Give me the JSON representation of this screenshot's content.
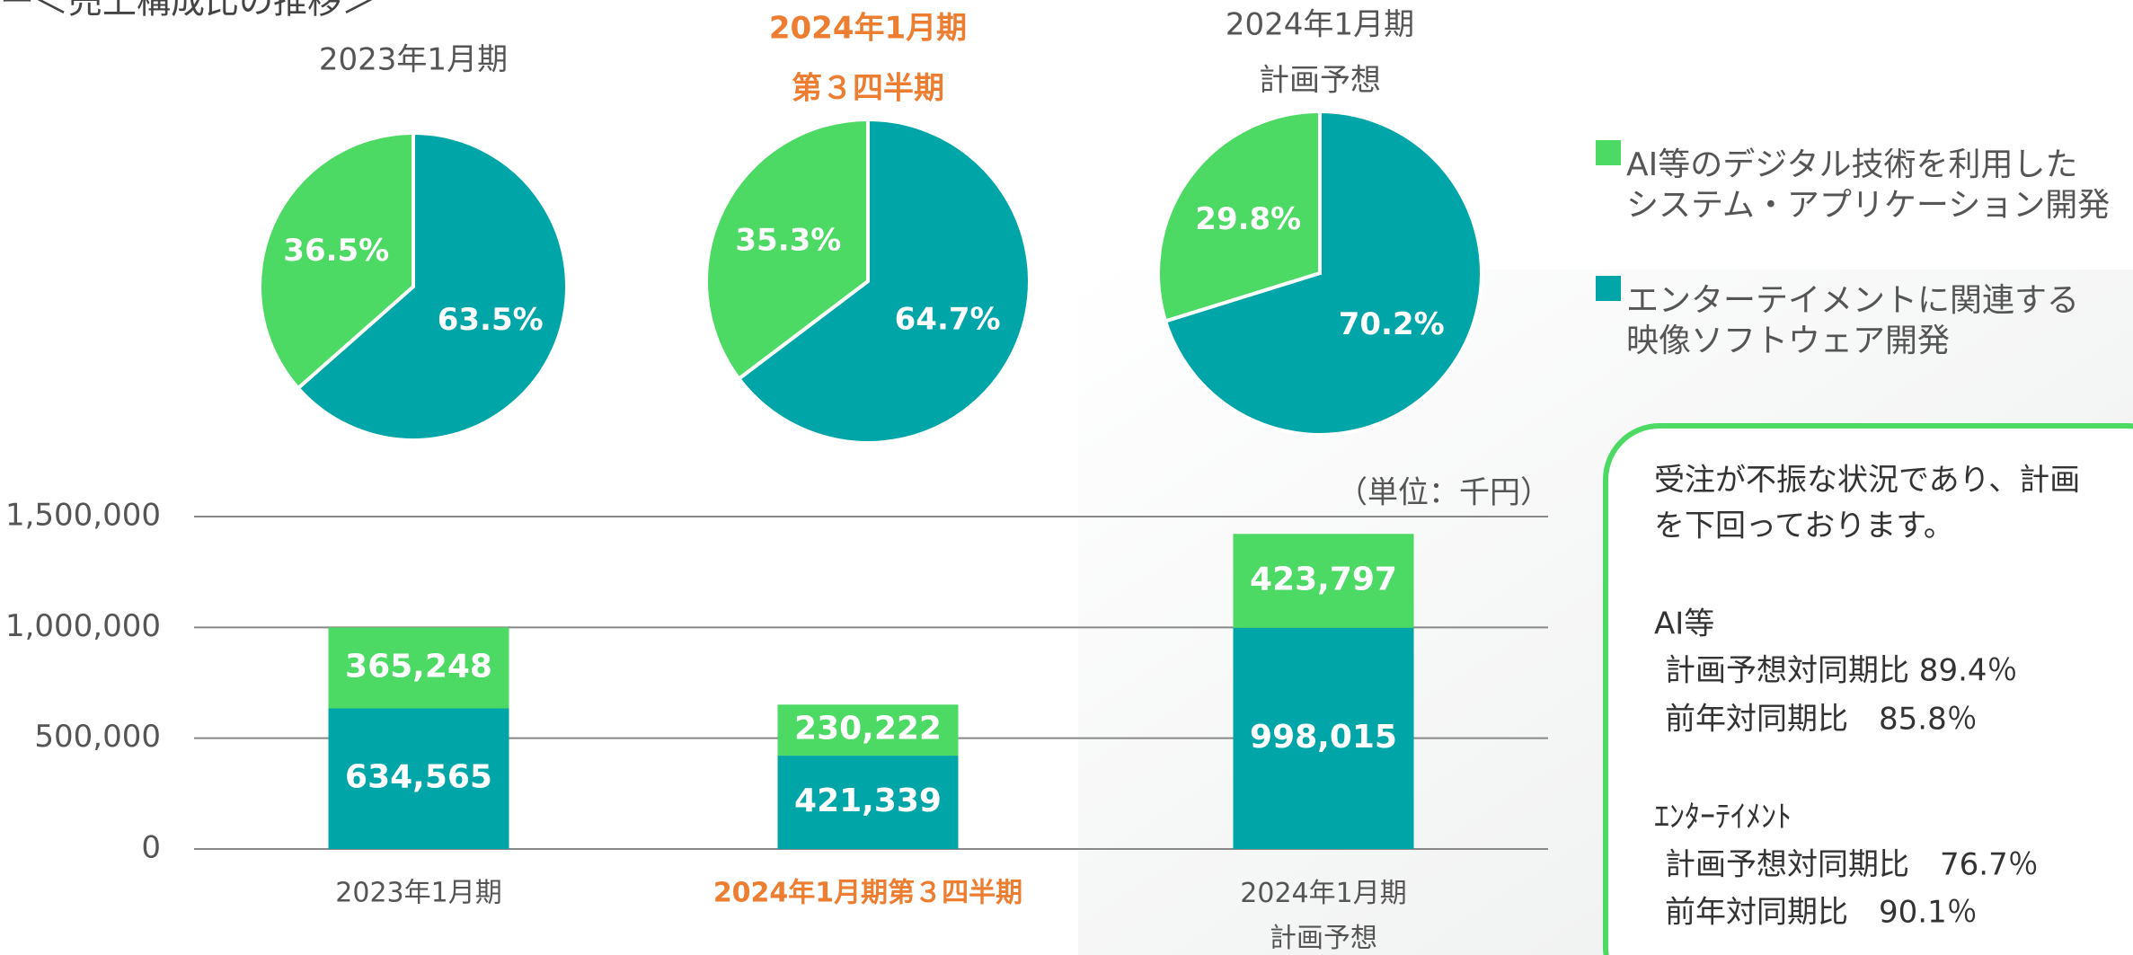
{
  "heading": "ー＜売上構成比の推移＞",
  "note": {
    "lines": [
      "受注が不振な状況であり、計画",
      "を下回っております。",
      "AI等",
      "計画予想対同期比 89.4％",
      "前年対同期比　85.8％",
      "ｴﾝﾀｰﾃｲﾒﾝﾄ",
      "計画予想対同期比　76.7％",
      "前年対同期比　90.1％"
    ],
    "border_color": "#4cd964"
  },
  "chart_data": [
    {
      "type": "pie",
      "title": [
        "2023年1月期"
      ],
      "title_color": "#555555",
      "title_bold": false,
      "values": [
        63.5,
        36.5
      ],
      "value_labels": [
        "63.5%",
        "36.5%"
      ],
      "colors": [
        "#00a5a8",
        "#4cd964"
      ]
    },
    {
      "type": "pie",
      "title": [
        "2024年1月期",
        "第３四半期"
      ],
      "title_color": "#ed7d31",
      "title_bold": true,
      "values": [
        64.7,
        35.3
      ],
      "value_labels": [
        "64.7%",
        "35.3%"
      ],
      "colors": [
        "#00a5a8",
        "#4cd964"
      ]
    },
    {
      "type": "pie",
      "title": [
        "2024年1月期",
        "計画予想"
      ],
      "title_color": "#555555",
      "title_bold": false,
      "values": [
        70.2,
        29.8
      ],
      "value_labels": [
        "70.2%",
        "29.8%"
      ],
      "colors": [
        "#00a5a8",
        "#4cd964"
      ]
    },
    {
      "type": "stacked_bar",
      "unit_label": "（単位：千円）",
      "categories": [
        "2023年1月期",
        "2024年1月期第３四半期",
        "2024年1月期\n計画予想"
      ],
      "category_label_colors": [
        "#555555",
        "#ed7d31",
        "#555555"
      ],
      "series": [
        {
          "name": "エンターテイメントに関連する\n映像ソフトウェア開発",
          "color": "#00a5a8",
          "values": [
            634565,
            421339,
            998015
          ],
          "value_labels": [
            "634,565",
            "421,339",
            "998,015"
          ]
        },
        {
          "name": "AI等のデジタル技術を利用した\nシステム・アプリケーション開発",
          "color": "#4cd964",
          "values": [
            365248,
            230222,
            423797
          ],
          "value_labels": [
            "365,248",
            "230,222",
            "423,797"
          ]
        }
      ],
      "ylim": [
        0,
        1500000
      ],
      "yticks": [
        0,
        {
          "value": 500000,
          "label": "500,000"
        },
        {
          "value": 1000000,
          "label": "1,000,000"
        },
        {
          "value": 1500000,
          "label": "1,500,000"
        }
      ],
      "grid": true
    }
  ]
}
